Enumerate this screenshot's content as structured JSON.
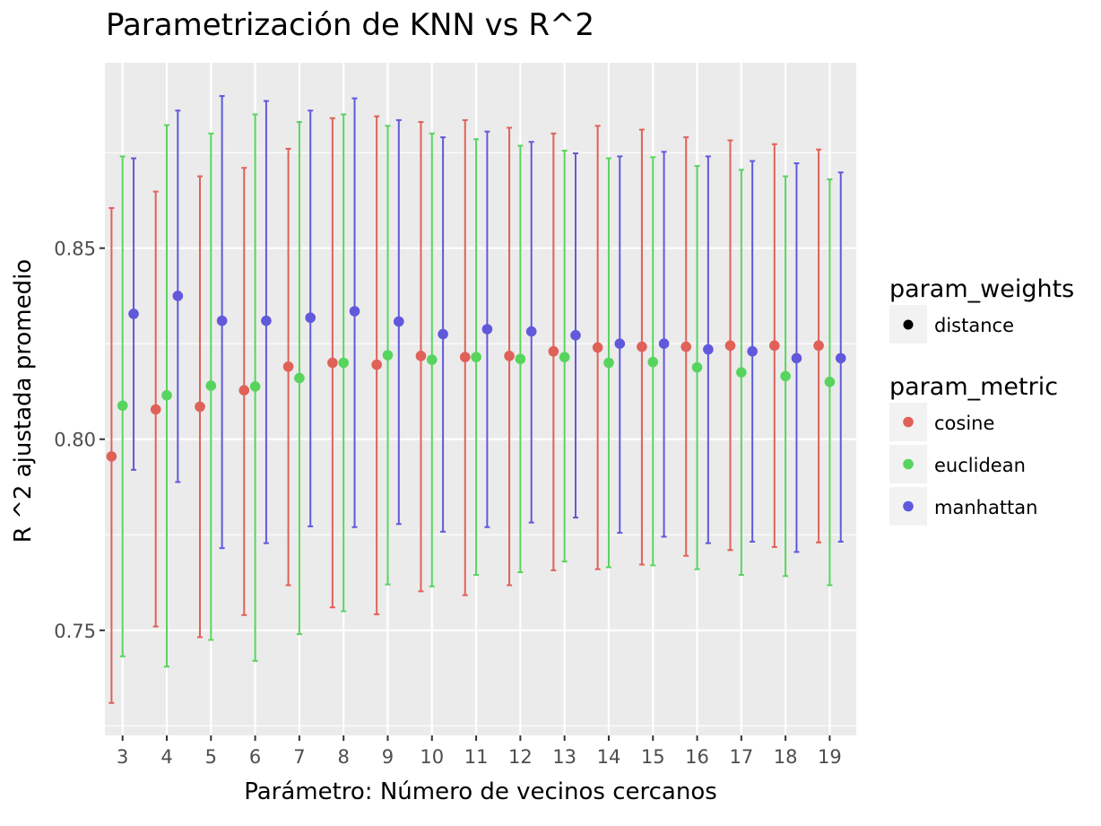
{
  "chart_data": {
    "type": "scatter",
    "title": "Parametrización de KNN vs R^2",
    "xlabel": "Parámetro: Número de vecinos cercanos",
    "ylabel": "R ^2 ajustada promedio",
    "x": [
      3,
      4,
      5,
      6,
      7,
      8,
      9,
      10,
      11,
      12,
      13,
      14,
      15,
      16,
      17,
      18,
      19
    ],
    "x_tick_labels": [
      "3",
      "4",
      "5",
      "6",
      "7",
      "8",
      "9",
      "10",
      "11",
      "12",
      "13",
      "14",
      "15",
      "16",
      "17",
      "18",
      "19"
    ],
    "y_tick_labels": [
      "0.75",
      "0.80",
      "0.85"
    ],
    "y_ticks": [
      0.75,
      0.8,
      0.85
    ],
    "xlim": [
      2.6,
      19.6
    ],
    "ylim": [
      0.7225,
      0.8985
    ],
    "grid": true,
    "legend_position": "right",
    "legend": {
      "weights_title": "param_weights",
      "weights_items": [
        "distance"
      ],
      "metric_title": "param_metric"
    },
    "series": [
      {
        "name": "cosine",
        "color": "#e06158",
        "values": [
          0.7955,
          0.8078,
          0.8085,
          0.8128,
          0.819,
          0.82,
          0.8195,
          0.8218,
          0.8215,
          0.8218,
          0.823,
          0.824,
          0.8242,
          0.8242,
          0.8245,
          0.8245,
          0.8245
        ],
        "upper": [
          0.8605,
          0.8648,
          0.8688,
          0.871,
          0.876,
          0.884,
          0.8845,
          0.883,
          0.8835,
          0.8815,
          0.88,
          0.882,
          0.881,
          0.879,
          0.8782,
          0.8772,
          0.8758
        ],
        "lower": [
          0.731,
          0.751,
          0.7482,
          0.754,
          0.7618,
          0.756,
          0.7542,
          0.7602,
          0.7592,
          0.7618,
          0.7657,
          0.766,
          0.7672,
          0.7695,
          0.771,
          0.7718,
          0.773
        ]
      },
      {
        "name": "euclidean",
        "color": "#57d45e",
        "values": [
          0.8088,
          0.8115,
          0.814,
          0.8138,
          0.816,
          0.82,
          0.822,
          0.8208,
          0.8215,
          0.821,
          0.8215,
          0.82,
          0.8202,
          0.8188,
          0.8175,
          0.8165,
          0.815
        ],
        "upper": [
          0.874,
          0.8822,
          0.88,
          0.885,
          0.883,
          0.885,
          0.882,
          0.88,
          0.8785,
          0.8768,
          0.8755,
          0.8735,
          0.8738,
          0.8715,
          0.8705,
          0.8688,
          0.868
        ],
        "lower": [
          0.7432,
          0.7405,
          0.7475,
          0.742,
          0.749,
          0.755,
          0.762,
          0.7615,
          0.7645,
          0.7652,
          0.768,
          0.7665,
          0.767,
          0.766,
          0.7645,
          0.7642,
          0.7618
        ]
      },
      {
        "name": "manhattan",
        "color": "#6159dc",
        "values": [
          0.8328,
          0.8375,
          0.831,
          0.831,
          0.8318,
          0.8335,
          0.8308,
          0.8275,
          0.8288,
          0.8282,
          0.8272,
          0.825,
          0.825,
          0.8235,
          0.823,
          0.8212,
          0.8212
        ],
        "upper": [
          0.8735,
          0.886,
          0.8898,
          0.8885,
          0.886,
          0.8892,
          0.8835,
          0.879,
          0.8805,
          0.8778,
          0.8748,
          0.874,
          0.8752,
          0.874,
          0.8728,
          0.8722,
          0.8698
        ],
        "lower": [
          0.792,
          0.7888,
          0.7715,
          0.7728,
          0.7772,
          0.777,
          0.7778,
          0.7758,
          0.777,
          0.7782,
          0.7795,
          0.7755,
          0.7745,
          0.7728,
          0.7732,
          0.7705,
          0.7732
        ]
      }
    ]
  }
}
